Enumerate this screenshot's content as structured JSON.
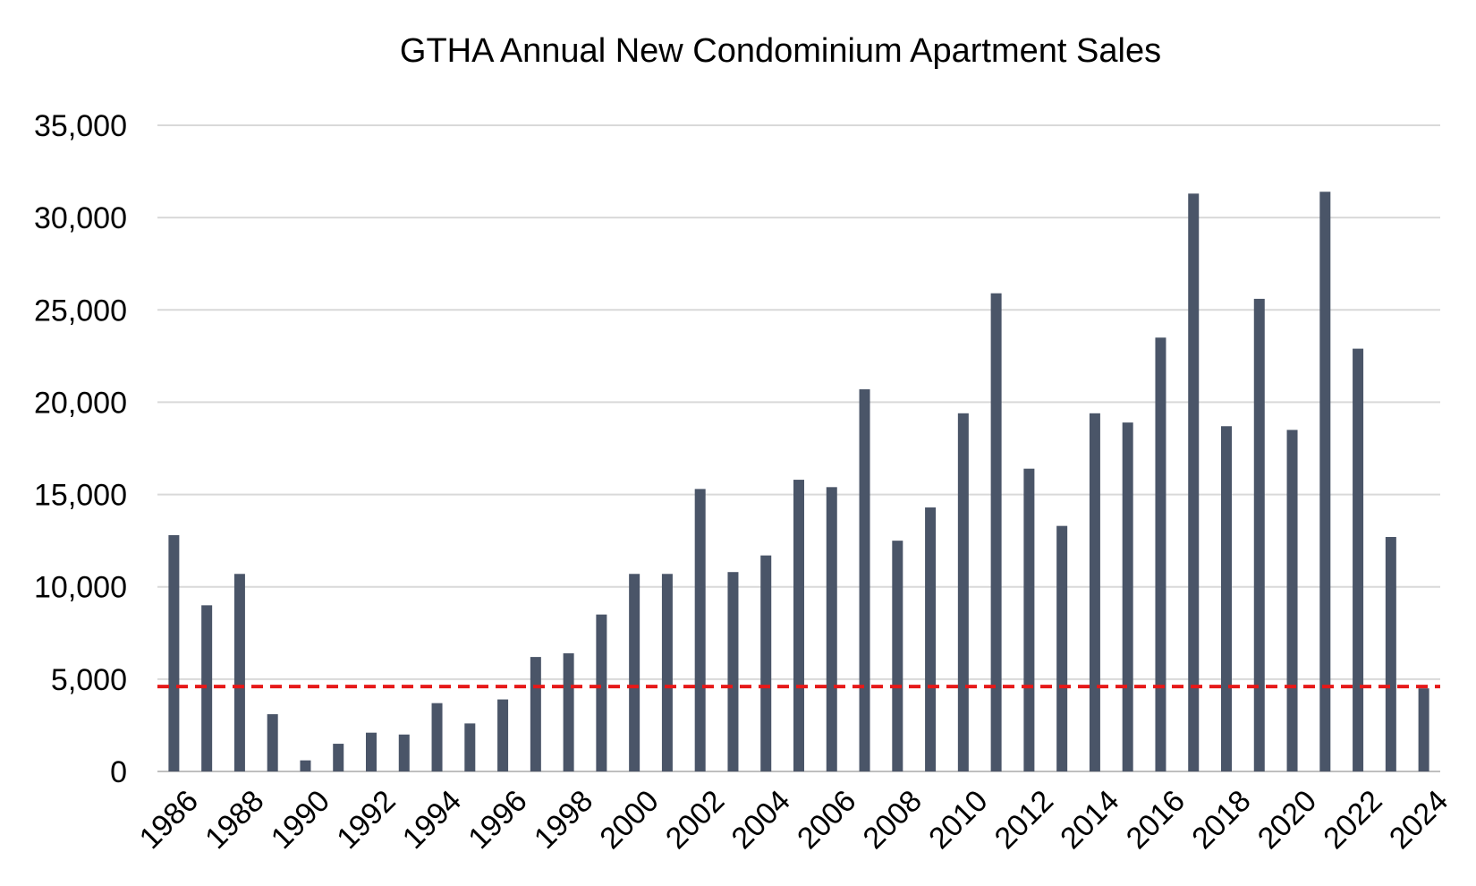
{
  "chart_data": {
    "type": "bar",
    "title": "GTHA Annual New Condominium Apartment Sales",
    "xlabel": "",
    "ylabel": "",
    "ylim": [
      0,
      35000
    ],
    "yticks": [
      0,
      5000,
      10000,
      15000,
      20000,
      25000,
      30000,
      35000
    ],
    "ytick_labels": [
      "0",
      "5,000",
      "10,000",
      "15,000",
      "20,000",
      "25,000",
      "30,000",
      "35,000"
    ],
    "grid": true,
    "bar_color": "#4a5568",
    "categories": [
      "1986",
      "1987",
      "1988",
      "1989",
      "1990",
      "1991",
      "1992",
      "1993",
      "1994",
      "1995",
      "1996",
      "1997",
      "1998",
      "1999",
      "2000",
      "2001",
      "2002",
      "2003",
      "2004",
      "2005",
      "2006",
      "2007",
      "2008",
      "2009",
      "2010",
      "2011",
      "2012",
      "2013",
      "2014",
      "2015",
      "2016",
      "2017",
      "2018",
      "2019",
      "2020",
      "2021",
      "2022",
      "2023",
      "2024"
    ],
    "xtick_labels": [
      "1986",
      "1988",
      "1990",
      "1992",
      "1994",
      "1996",
      "1998",
      "2000",
      "2002",
      "2004",
      "2006",
      "2008",
      "2010",
      "2012",
      "2014",
      "2016",
      "2018",
      "2020",
      "2022",
      "2024"
    ],
    "values": [
      12800,
      9000,
      10700,
      3100,
      600,
      1500,
      2100,
      2000,
      3700,
      2600,
      3900,
      6200,
      6400,
      8500,
      10700,
      10700,
      15300,
      10800,
      11700,
      15800,
      15400,
      20700,
      12500,
      14300,
      19400,
      25900,
      16400,
      13300,
      19400,
      18900,
      23500,
      31300,
      18700,
      25600,
      18500,
      31400,
      22900,
      12700,
      4500
    ],
    "reference_line": {
      "value": 4600,
      "color": "#e61919",
      "style": "dashed"
    }
  }
}
